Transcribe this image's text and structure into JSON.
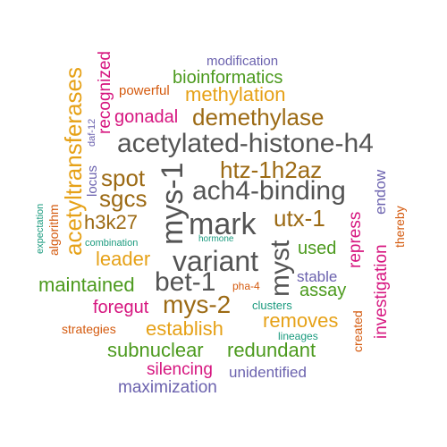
{
  "words": {
    "modification": "modification",
    "bioinformatics": "bioinformatics",
    "powerful": "powerful",
    "methylation": "methylation",
    "gonadal": "gonadal",
    "demethylase": "demethylase",
    "acetylated_histone_h4": "acetylated-histone-h4",
    "htz_1h2az": "htz-1h2az",
    "spot": "spot",
    "ach4_binding": "ach4-binding",
    "sgcs": "sgcs",
    "h3k27": "h3k27",
    "mark": "mark",
    "utx_1": "utx-1",
    "combination": "combination",
    "hormone": "hormone",
    "used": "used",
    "leader": "leader",
    "variant": "variant",
    "bet_1": "bet-1",
    "stable": "stable",
    "maintained": "maintained",
    "pha_4": "pha-4",
    "assay": "assay",
    "foregut": "foregut",
    "mys_2": "mys-2",
    "clusters": "clusters",
    "removes": "removes",
    "establish": "establish",
    "strategies": "strategies",
    "lineages": "lineages",
    "subnuclear": "subnuclear",
    "redundant": "redundant",
    "silencing": "silencing",
    "unidentified": "unidentified",
    "maximization": "maximization",
    "acetyltransferases": "acetyltransferases",
    "recognized": "recognized",
    "daf_12": "daf-12",
    "locus": "locus",
    "expectation": "expectation",
    "algorithm": "algorithm",
    "mys_1": "mys-1",
    "myst": "myst",
    "repress": "repress",
    "investigation": "investigation",
    "endow": "endow",
    "thereby": "thereby",
    "created": "created"
  },
  "colors": {
    "orange": "#E6A117",
    "green": "#4C9A1E",
    "purple": "#6B62AE",
    "magenta": "#D6157F",
    "brown": "#9C6A14",
    "gray": "#545454",
    "teal": "#1A9A7E",
    "redorange": "#D45A0E"
  }
}
